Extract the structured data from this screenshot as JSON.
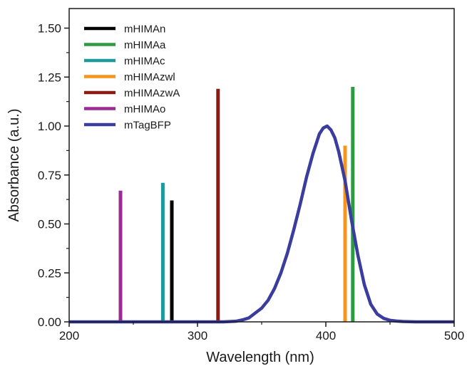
{
  "chart_data": {
    "type": "line",
    "xlabel": "Wavelength (nm)",
    "ylabel": "Absorbance (a.u.)",
    "xlim": [
      200,
      500
    ],
    "ylim": [
      0,
      1.6
    ],
    "x_ticks": [
      200,
      300,
      400,
      500
    ],
    "x_tick_labels": [
      "200",
      "300",
      "400",
      "500"
    ],
    "y_ticks": [
      0,
      0.25,
      0.5,
      0.75,
      1.0,
      1.25,
      1.5
    ],
    "y_tick_labels": [
      "0.00",
      "0.25",
      "0.50",
      "0.75",
      "1.00",
      "1.25",
      "1.50"
    ],
    "legend_position": "top-left",
    "grid": false,
    "stick_series": [
      {
        "name": "mHIMAn",
        "color": "#000000",
        "x": 280,
        "y": 0.62
      },
      {
        "name": "mHIMAa",
        "color": "#2e9a44",
        "x": 421,
        "y": 1.2
      },
      {
        "name": "mHIMAc",
        "color": "#1e9a9a",
        "x": 273,
        "y": 0.71
      },
      {
        "name": "mHIMAzwl",
        "color": "#f7941d",
        "x": 415,
        "y": 0.9
      },
      {
        "name": "mHIMAzwA",
        "color": "#8b1a10",
        "x": 316,
        "y": 1.19
      },
      {
        "name": "mHIMAo",
        "color": "#9b2c96",
        "x": 240,
        "y": 0.67
      }
    ],
    "series": [
      {
        "name": "mTagBFP",
        "color": "#3b3d9e",
        "x": [
          200,
          320,
          330,
          335,
          340,
          345,
          350,
          355,
          360,
          365,
          370,
          375,
          380,
          385,
          390,
          395,
          398,
          401,
          404,
          407,
          410,
          415,
          420,
          425,
          430,
          435,
          440,
          445,
          450,
          455,
          460,
          470,
          480,
          500
        ],
        "y": [
          0.0,
          0.0,
          0.003,
          0.01,
          0.02,
          0.045,
          0.07,
          0.11,
          0.17,
          0.25,
          0.35,
          0.47,
          0.6,
          0.74,
          0.86,
          0.96,
          0.99,
          1.0,
          0.98,
          0.94,
          0.87,
          0.72,
          0.52,
          0.34,
          0.19,
          0.09,
          0.04,
          0.018,
          0.008,
          0.004,
          0.002,
          0.0,
          0.0,
          0.0
        ]
      }
    ]
  }
}
